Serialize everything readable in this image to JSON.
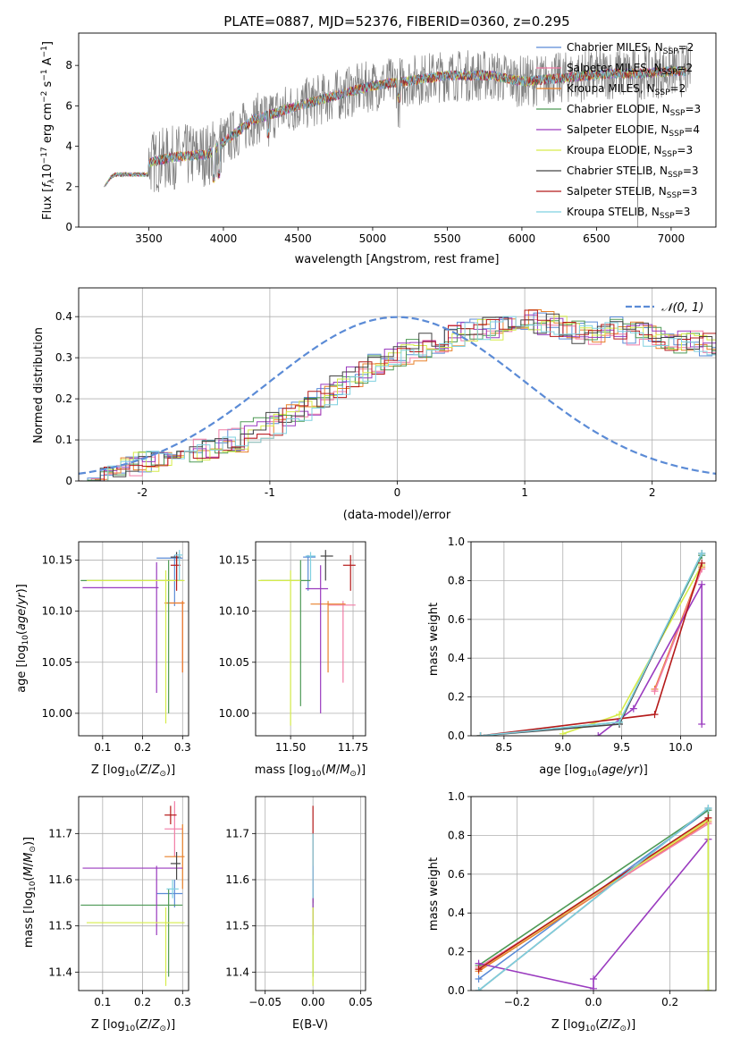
{
  "title": "PLATE=0887, MJD=52376, FIBERID=0360, z=0.295",
  "colors": {
    "chabrier_miles": "#5b8bd6",
    "salpeter_miles": "#f27ca6",
    "kroupa_miles": "#e8812b",
    "chabrier_elodie": "#4e9a56",
    "salpeter_elodie": "#9a3bbf",
    "kroupa_elodie": "#d6ec4a",
    "chabrier_stelib": "#444444",
    "salpeter_stelib": "#b51a1a",
    "kroupa_stelib": "#7fd0e0",
    "data": "#808080",
    "grid": "#b0b0b0"
  },
  "chart_data": [
    {
      "id": "spectrum",
      "type": "line",
      "xlabel": "wavelength [Angstrom, rest frame]",
      "ylabel": "Flux [f_λ 10^−17 erg cm^−2 s^−1 A^−1]",
      "xlim": [
        3030,
        7300
      ],
      "ylim": [
        0,
        9.6
      ],
      "xticks": [
        3500,
        4000,
        4500,
        5000,
        5500,
        6000,
        6500,
        7000
      ],
      "yticks": [
        0,
        2,
        4,
        6,
        8
      ],
      "grid": false,
      "legend_position": "top-right",
      "legend": [
        {
          "label": "Chabrier MILES, N",
          "sub": "SSP",
          "val": "=2",
          "key": "chabrier_miles"
        },
        {
          "label": "Salpeter MILES, N",
          "sub": "SSP",
          "val": "=2",
          "key": "salpeter_miles"
        },
        {
          "label": "Kroupa MILES, N",
          "sub": "SSP",
          "val": "=2",
          "key": "kroupa_miles"
        },
        {
          "label": "Chabrier ELODIE, N",
          "sub": "SSP",
          "val": "=3",
          "key": "chabrier_elodie"
        },
        {
          "label": "Salpeter ELODIE, N",
          "sub": "SSP",
          "val": "=4",
          "key": "salpeter_elodie"
        },
        {
          "label": "Kroupa ELODIE, N",
          "sub": "SSP",
          "val": "=3",
          "key": "kroupa_elodie"
        },
        {
          "label": "Chabrier STELIB, N",
          "sub": "SSP",
          "val": "=3",
          "key": "chabrier_stelib"
        },
        {
          "label": "Salpeter STELIB, N",
          "sub": "SSP",
          "val": "=3",
          "key": "salpeter_stelib"
        },
        {
          "label": "Kroupa STELIB, N",
          "sub": "SSP",
          "val": "=3",
          "key": "kroupa_stelib"
        }
      ],
      "continuum": {
        "x": [
          3200,
          3250,
          3400,
          3500,
          3700,
          3900,
          4000,
          4200,
          4500,
          4800,
          5000,
          5200,
          5500,
          5800,
          6000,
          6300,
          6600,
          6800,
          7000,
          7100
        ],
        "y": [
          2.0,
          2.5,
          2.9,
          3.2,
          3.5,
          3.6,
          4.2,
          5.3,
          6.0,
          6.6,
          7.0,
          7.2,
          7.5,
          7.5,
          7.2,
          7.4,
          7.6,
          7.6,
          7.7,
          7.7
        ]
      }
    },
    {
      "id": "residuals",
      "type": "histogram",
      "xlabel": "(data-model)/error",
      "ylabel": "Normed distribution",
      "xlim": [
        -2.5,
        2.5
      ],
      "ylim": [
        0,
        0.47
      ],
      "xticks": [
        -2,
        -1,
        0,
        1,
        2
      ],
      "yticks": [
        0.0,
        0.1,
        0.2,
        0.3,
        0.4
      ],
      "grid": true,
      "legend_position": "top-right",
      "legend": [
        {
          "label": "𝒩(0, 1)"
        }
      ],
      "bin_width": 0.1,
      "base": [
        0.015,
        0.02,
        0.025,
        0.03,
        0.04,
        0.045,
        0.055,
        0.06,
        0.065,
        0.075,
        0.085,
        0.095,
        0.1,
        0.115,
        0.13,
        0.14,
        0.16,
        0.175,
        0.19,
        0.21,
        0.23,
        0.25,
        0.26,
        0.28,
        0.3,
        0.31,
        0.32,
        0.33,
        0.34,
        0.35,
        0.36,
        0.365,
        0.37,
        0.375,
        0.38,
        0.39,
        0.385,
        0.38,
        0.37,
        0.36,
        0.36,
        0.365,
        0.37,
        0.36,
        0.355,
        0.35,
        0.34,
        0.34,
        0.335,
        0.33,
        0.33,
        0.325,
        0.32,
        0.31,
        0.3,
        0.29,
        0.28,
        0.27,
        0.26,
        0.25,
        0.24,
        0.23,
        0.21,
        0.195,
        0.18,
        0.165,
        0.15,
        0.135,
        0.12,
        0.105,
        0.095,
        0.085,
        0.075,
        0.065,
        0.058,
        0.05,
        0.045,
        0.04,
        0.036,
        0.032
      ]
    },
    {
      "id": "age_vs_Z",
      "type": "errorbar",
      "xlabel": "Z [log10(Z/Z⊙)]",
      "ylabel": "age [log10(age/yr)]",
      "xlim": [
        0.04,
        0.315
      ],
      "ylim": [
        9.978,
        10.168
      ],
      "xticks": [
        0.1,
        0.2,
        0.3
      ],
      "xticklabels": [
        "0.1",
        "0.2",
        "0.3"
      ],
      "yticks": [
        10.0,
        10.05,
        10.1,
        10.15
      ],
      "yticklabels": [
        "10.00",
        "10.05",
        "10.10",
        "10.15"
      ],
      "points": [
        {
          "key": "chabrier_miles",
          "x": 0.28,
          "xerr": [
            0.235,
            0.3
          ],
          "y": 10.152,
          "yerr": [
            10.105,
            10.155
          ]
        },
        {
          "key": "salpeter_miles",
          "x": 0.3,
          "xerr": [
            0.255,
            0.305
          ],
          "y": 10.108,
          "yerr": [
            10.04,
            10.11
          ]
        },
        {
          "key": "kroupa_miles",
          "x": 0.3,
          "xerr": [
            0.255,
            0.305
          ],
          "y": 10.108,
          "yerr": [
            10.04,
            10.11
          ]
        },
        {
          "key": "chabrier_elodie",
          "x": 0.265,
          "xerr": [
            0.045,
            0.3
          ],
          "y": 10.13,
          "yerr": [
            10.0,
            10.15
          ]
        },
        {
          "key": "salpeter_elodie",
          "x": 0.235,
          "xerr": [
            0.05,
            0.24
          ],
          "y": 10.123,
          "yerr": [
            10.02,
            10.148
          ]
        },
        {
          "key": "kroupa_elodie",
          "x": 0.258,
          "xerr": [
            0.06,
            0.305
          ],
          "y": 10.13,
          "yerr": [
            9.99,
            10.14
          ]
        },
        {
          "key": "chabrier_stelib",
          "x": 0.285,
          "xerr": [
            0.27,
            0.295
          ],
          "y": 10.153,
          "yerr": [
            10.13,
            10.158
          ]
        },
        {
          "key": "salpeter_stelib",
          "x": 0.285,
          "xerr": [
            0.27,
            0.295
          ],
          "y": 10.145,
          "yerr": [
            10.12,
            10.155
          ]
        },
        {
          "key": "kroupa_stelib",
          "x": 0.292,
          "xerr": [
            0.28,
            0.3
          ],
          "y": 10.155,
          "yerr": [
            10.13,
            10.16
          ]
        }
      ]
    },
    {
      "id": "age_vs_mass",
      "type": "errorbar",
      "xlabel": "mass [log10(M/M⊙)]",
      "ylabel": "",
      "xlim": [
        11.36,
        11.8
      ],
      "ylim": [
        9.978,
        10.168
      ],
      "xticks": [
        11.5,
        11.75
      ],
      "xticklabels": [
        "11.50",
        "11.75"
      ],
      "yticks": [
        10.0,
        10.05,
        10.1,
        10.15
      ],
      "yticklabels": [
        "10.00",
        "10.05",
        "10.10",
        "10.15"
      ],
      "points": [
        {
          "key": "chabrier_miles",
          "x": 11.57,
          "xerr": [
            11.55,
            11.6
          ],
          "y": 10.153,
          "yerr": [
            10.12,
            10.155
          ]
        },
        {
          "key": "salpeter_miles",
          "x": 11.71,
          "xerr": [
            11.65,
            11.76
          ],
          "y": 10.106,
          "yerr": [
            10.03,
            10.11
          ]
        },
        {
          "key": "kroupa_miles",
          "x": 11.65,
          "xerr": [
            11.58,
            11.72
          ],
          "y": 10.107,
          "yerr": [
            10.04,
            10.11
          ]
        },
        {
          "key": "chabrier_elodie",
          "x": 11.54,
          "xerr": [
            11.38,
            11.58
          ],
          "y": 10.13,
          "yerr": [
            10.007,
            10.15
          ]
        },
        {
          "key": "salpeter_elodie",
          "x": 11.62,
          "xerr": [
            11.56,
            11.65
          ],
          "y": 10.122,
          "yerr": [
            10.0,
            10.145
          ]
        },
        {
          "key": "kroupa_elodie",
          "x": 11.5,
          "xerr": [
            11.37,
            11.54
          ],
          "y": 10.13,
          "yerr": [
            9.988,
            10.14
          ]
        },
        {
          "key": "chabrier_stelib",
          "x": 11.64,
          "xerr": [
            11.62,
            11.67
          ],
          "y": 10.154,
          "yerr": [
            10.13,
            10.16
          ]
        },
        {
          "key": "salpeter_stelib",
          "x": 11.74,
          "xerr": [
            11.71,
            11.76
          ],
          "y": 10.145,
          "yerr": [
            10.12,
            10.155
          ]
        },
        {
          "key": "kroupa_stelib",
          "x": 11.58,
          "xerr": [
            11.56,
            11.6
          ],
          "y": 10.154,
          "yerr": [
            10.13,
            10.158
          ]
        }
      ]
    },
    {
      "id": "mass_vs_Z",
      "type": "errorbar",
      "xlabel": "Z [log10(Z/Z⊙)]",
      "ylabel": "mass [log10(M/M⊙)]",
      "xlim": [
        0.04,
        0.315
      ],
      "ylim": [
        11.36,
        11.78
      ],
      "xticks": [
        0.1,
        0.2,
        0.3
      ],
      "xticklabels": [
        "0.1",
        "0.2",
        "0.3"
      ],
      "yticks": [
        11.4,
        11.5,
        11.6,
        11.7
      ],
      "yticklabels": [
        "11.4",
        "11.5",
        "11.6",
        "11.7"
      ],
      "points": [
        {
          "key": "chabrier_miles",
          "x": 0.28,
          "xerr": [
            0.235,
            0.3
          ],
          "y": 11.57,
          "yerr": [
            11.54,
            11.6
          ]
        },
        {
          "key": "salpeter_miles",
          "x": 0.28,
          "xerr": [
            0.255,
            0.3
          ],
          "y": 11.71,
          "yerr": [
            11.65,
            11.77
          ]
        },
        {
          "key": "kroupa_miles",
          "x": 0.3,
          "xerr": [
            0.255,
            0.305
          ],
          "y": 11.65,
          "yerr": [
            11.58,
            11.72
          ]
        },
        {
          "key": "chabrier_elodie",
          "x": 0.265,
          "xerr": [
            0.045,
            0.3
          ],
          "y": 11.545,
          "yerr": [
            11.39,
            11.58
          ]
        },
        {
          "key": "salpeter_elodie",
          "x": 0.235,
          "xerr": [
            0.05,
            0.3
          ],
          "y": 11.625,
          "yerr": [
            11.48,
            11.63
          ]
        },
        {
          "key": "kroupa_elodie",
          "x": 0.258,
          "xerr": [
            0.06,
            0.305
          ],
          "y": 11.507,
          "yerr": [
            11.37,
            11.54
          ]
        },
        {
          "key": "chabrier_stelib",
          "x": 0.285,
          "xerr": [
            0.27,
            0.295
          ],
          "y": 11.635,
          "yerr": [
            11.6,
            11.66
          ]
        },
        {
          "key": "salpeter_stelib",
          "x": 0.27,
          "xerr": [
            0.255,
            0.285
          ],
          "y": 11.74,
          "yerr": [
            11.72,
            11.76
          ]
        },
        {
          "key": "kroupa_stelib",
          "x": 0.275,
          "xerr": [
            0.26,
            0.29
          ],
          "y": 11.58,
          "yerr": [
            11.56,
            11.6
          ]
        }
      ]
    },
    {
      "id": "mass_vs_ebv",
      "type": "errorbar",
      "xlabel": "E(B-V)",
      "ylabel": "",
      "xlim": [
        -0.06,
        0.055
      ],
      "ylim": [
        11.36,
        11.78
      ],
      "xticks": [
        -0.05,
        0.0,
        0.05
      ],
      "xticklabels": [
        "−0.05",
        "0.00",
        "0.05"
      ],
      "yticks": [
        11.4,
        11.5,
        11.6,
        11.7
      ],
      "yticklabels": [
        "11.4",
        "11.5",
        "11.6",
        "11.7"
      ],
      "points": [
        {
          "key": "salpeter_stelib",
          "x": 0.0,
          "xerr": [
            0,
            0
          ],
          "y": 11.74,
          "yerr": [
            11.55,
            11.76
          ]
        },
        {
          "key": "chabrier_elodie",
          "x": 0.0,
          "xerr": [
            0,
            0
          ],
          "y": 11.54,
          "yerr": [
            11.39,
            11.58
          ]
        },
        {
          "key": "salpeter_elodie",
          "x": 0.0,
          "xerr": [
            0,
            0
          ],
          "y": 11.62,
          "yerr": [
            11.48,
            11.63
          ]
        },
        {
          "key": "kroupa_stelib",
          "x": 0.0,
          "xerr": [
            0,
            0
          ],
          "y": 11.6,
          "yerr": [
            11.56,
            11.7
          ]
        },
        {
          "key": "kroupa_elodie",
          "x": 0.0,
          "xerr": [
            0,
            0
          ],
          "y": 11.5,
          "yerr": [
            11.37,
            11.54
          ]
        }
      ]
    },
    {
      "id": "weight_vs_age",
      "type": "line",
      "xlabel": "age (log10(age/yr))",
      "ylabel": "mass weight",
      "xlim": [
        8.22,
        10.3
      ],
      "ylim": [
        0,
        1.0
      ],
      "xticks": [
        8.5,
        9.0,
        9.5,
        10.0
      ],
      "xticklabels": [
        "8.5",
        "9.0",
        "9.5",
        "10.0"
      ],
      "yticks": [
        0,
        0.2,
        0.4,
        0.6,
        0.8,
        1.0
      ],
      "yticklabels": [
        "0.0",
        "0.2",
        "0.4",
        "0.6",
        "0.8",
        "1.0"
      ],
      "series": [
        {
          "key": "chabrier_miles",
          "x": [
            9.48,
            10.18
          ],
          "y": [
            0.07,
            0.93
          ]
        },
        {
          "key": "kroupa_miles",
          "x": [
            9.78,
            10.18
          ],
          "y": [
            0.24,
            0.87
          ]
        },
        {
          "key": "salpeter_miles",
          "x": [
            9.78,
            10.18
          ],
          "y": [
            0.23,
            0.86
          ]
        },
        {
          "key": "chabrier_elodie",
          "x": [
            8.3,
            9.48,
            10.18
          ],
          "y": [
            0.0,
            0.07,
            0.93
          ]
        },
        {
          "key": "salpeter_elodie",
          "x": [
            9.3,
            9.6,
            10.18,
            10.18
          ],
          "y": [
            0.0,
            0.14,
            0.78,
            0.06
          ]
        },
        {
          "key": "kroupa_elodie",
          "x": [
            9.0,
            9.48,
            10.18
          ],
          "y": [
            0.01,
            0.11,
            0.88
          ]
        },
        {
          "key": "chabrier_stelib",
          "x": [
            8.3,
            9.48,
            10.18
          ],
          "y": [
            0.0,
            0.06,
            0.94
          ]
        },
        {
          "key": "salpeter_stelib",
          "x": [
            8.3,
            9.78,
            10.18
          ],
          "y": [
            0.0,
            0.11,
            0.89
          ]
        },
        {
          "key": "kroupa_stelib",
          "x": [
            8.3,
            9.48,
            10.18
          ],
          "y": [
            0.0,
            0.07,
            0.94
          ]
        }
      ]
    },
    {
      "id": "weight_vs_Z",
      "type": "line",
      "xlabel": "Z [log10(Z/Z⊙)]",
      "ylabel": "mass weight",
      "xlim": [
        -0.32,
        0.32
      ],
      "ylim": [
        0,
        1.0
      ],
      "xticks": [
        -0.2,
        0.0,
        0.2
      ],
      "xticklabels": [
        "−0.2",
        "0.0",
        "0.2"
      ],
      "yticks": [
        0,
        0.2,
        0.4,
        0.6,
        0.8,
        1.0
      ],
      "yticklabels": [
        "0.0",
        "0.2",
        "0.4",
        "0.6",
        "0.8",
        "1.0"
      ],
      "series": [
        {
          "key": "chabrier_miles",
          "x": [
            -0.3,
            0.3
          ],
          "y": [
            0.06,
            0.93
          ]
        },
        {
          "key": "kroupa_miles",
          "x": [
            -0.3,
            0.3
          ],
          "y": [
            0.1,
            0.87
          ]
        },
        {
          "key": "salpeter_miles",
          "x": [
            -0.3,
            0.3
          ],
          "y": [
            0.12,
            0.86
          ]
        },
        {
          "key": "chabrier_elodie",
          "x": [
            -0.3,
            0.3,
            0.3
          ],
          "y": [
            0.13,
            0.93,
            0.0
          ]
        },
        {
          "key": "salpeter_elodie",
          "x": [
            -0.3,
            0.0,
            0.0,
            0.3
          ],
          "y": [
            0.14,
            0.01,
            0.06,
            0.78
          ]
        },
        {
          "key": "kroupa_elodie",
          "x": [
            -0.3,
            0.3,
            0.3
          ],
          "y": [
            0.11,
            0.88,
            0.0
          ]
        },
        {
          "key": "chabrier_stelib",
          "x": [
            -0.3,
            0.3
          ],
          "y": [
            0.0,
            0.94
          ]
        },
        {
          "key": "salpeter_stelib",
          "x": [
            -0.3,
            0.3
          ],
          "y": [
            0.11,
            0.89
          ]
        },
        {
          "key": "kroupa_stelib",
          "x": [
            -0.3,
            0.3
          ],
          "y": [
            0.0,
            0.94
          ]
        }
      ]
    }
  ]
}
